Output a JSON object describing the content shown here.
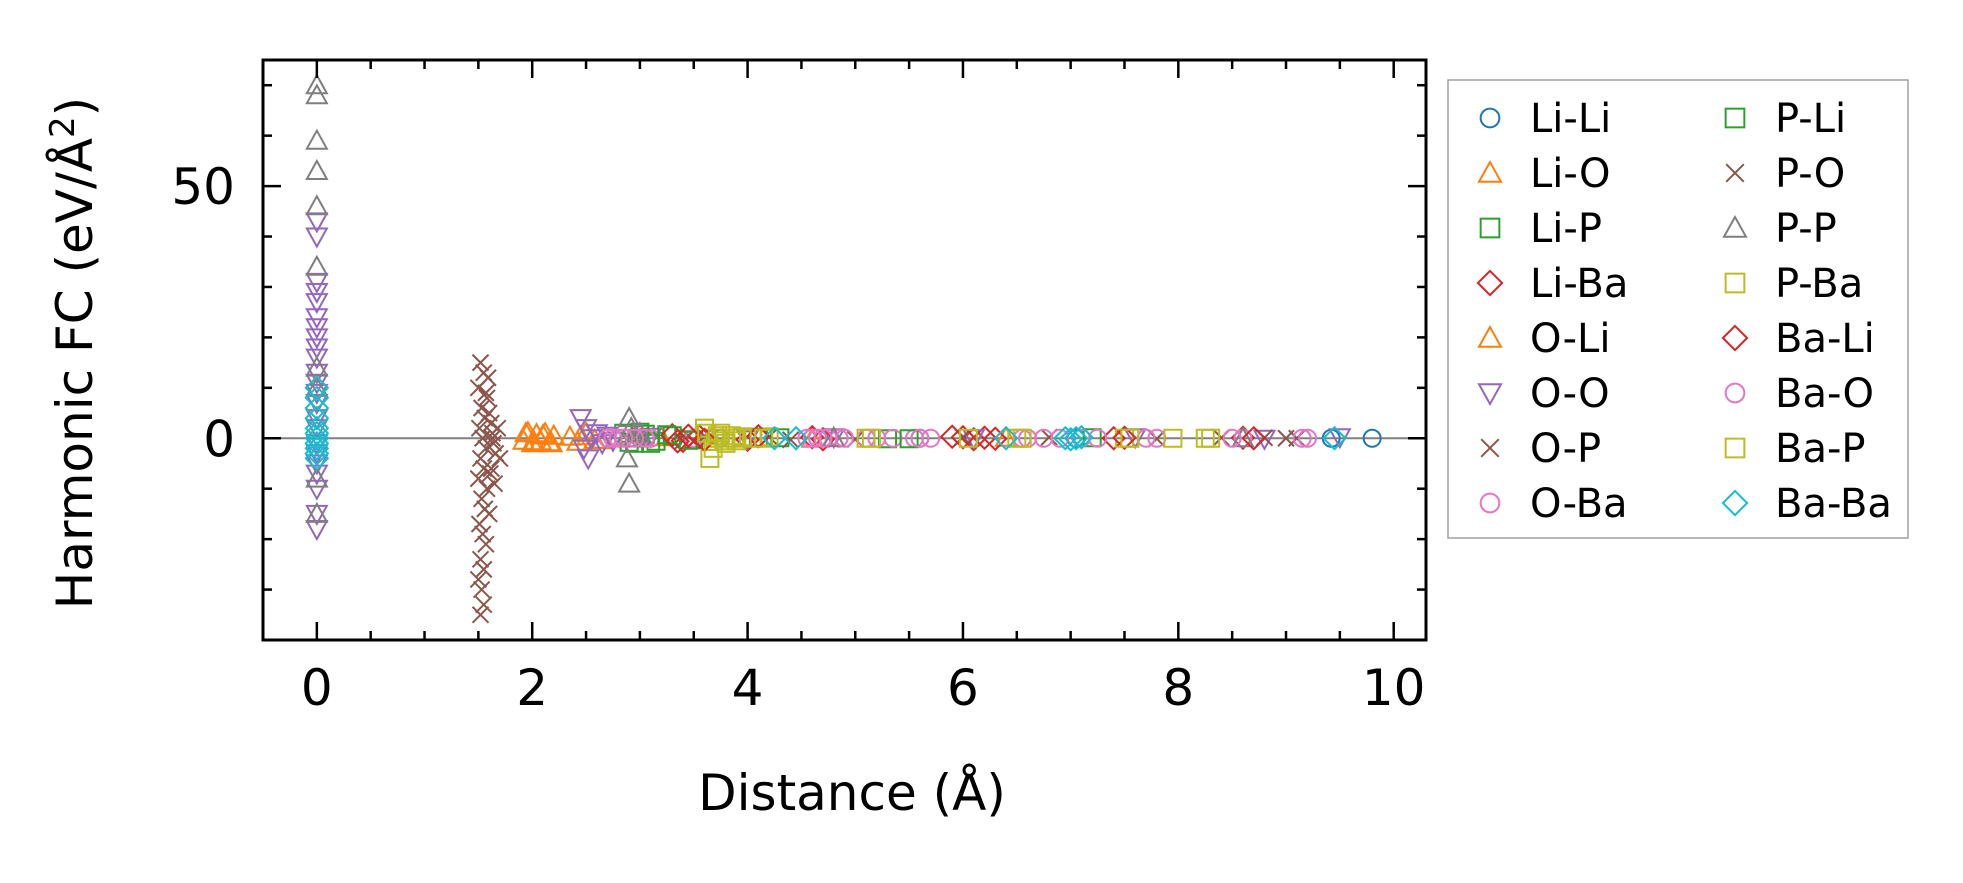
{
  "chart_data": {
    "type": "scatter",
    "title": "",
    "xlabel": "Distance (Å)",
    "ylabel_prefix": "Harmonic FC (eV/Å",
    "ylabel_sup": "2",
    "ylabel_suffix": ")",
    "xlim": [
      -0.5,
      10.3
    ],
    "ylim": [
      -40,
      75
    ],
    "xticks": [
      0,
      2,
      4,
      6,
      8,
      10
    ],
    "xtick_labels": [
      "0",
      "2",
      "4",
      "6",
      "8",
      "10"
    ],
    "xminor": [
      -0.5,
      0.5,
      1,
      1.5,
      2.5,
      3,
      3.5,
      4.5,
      5,
      5.5,
      6.5,
      7,
      7.5,
      8.5,
      9,
      9.5
    ],
    "yticks": [
      0,
      50
    ],
    "ytick_labels": [
      "0",
      "50"
    ],
    "yminor": [
      -30,
      -20,
      -10,
      10,
      20,
      30,
      40,
      60,
      70
    ],
    "zero_line": true,
    "grid": false,
    "legend_position": "outside-right",
    "series": [
      {
        "name": "Li-Li",
        "color": "#1f77b4",
        "marker": "circle",
        "points": [
          [
            9.8,
            0
          ],
          [
            9.42,
            0
          ],
          [
            7.05,
            0
          ],
          [
            5.6,
            0
          ],
          [
            3.75,
            0
          ]
        ]
      },
      {
        "name": "Li-O",
        "color": "#ff7f0e",
        "marker": "triangle-up",
        "points": [
          [
            1.92,
            -0.5
          ],
          [
            1.96,
            1.2
          ],
          [
            2.0,
            -1.0
          ],
          [
            2.04,
            0.8
          ],
          [
            2.08,
            -0.6
          ],
          [
            2.12,
            1.0
          ],
          [
            2.16,
            -0.8
          ],
          [
            2.2,
            0.5
          ],
          [
            2.35,
            0.3
          ],
          [
            2.42,
            -0.7
          ],
          [
            2.5,
            1.1
          ],
          [
            2.65,
            -0.4
          ],
          [
            3.2,
            0.2
          ],
          [
            4.6,
            -0.1
          ],
          [
            6.4,
            0.1
          ]
        ]
      },
      {
        "name": "Li-P",
        "color": "#2ca02c",
        "marker": "square",
        "points": [
          [
            2.85,
            1.0
          ],
          [
            2.95,
            -1.0
          ],
          [
            3.05,
            0.8
          ],
          [
            3.15,
            -0.6
          ],
          [
            3.3,
            0.5
          ],
          [
            3.5,
            -0.3
          ],
          [
            4.1,
            0.2
          ],
          [
            5.3,
            -0.1
          ],
          [
            7.2,
            0.1
          ]
        ]
      },
      {
        "name": "Li-Ba",
        "color": "#d62728",
        "marker": "diamond",
        "points": [
          [
            3.3,
            0.6
          ],
          [
            3.4,
            -0.5
          ],
          [
            3.55,
            0.4
          ],
          [
            4.0,
            -0.3
          ],
          [
            4.6,
            0.2
          ],
          [
            5.9,
            0.3
          ],
          [
            6.1,
            -0.2
          ],
          [
            6.2,
            0.1
          ],
          [
            7.4,
            0
          ],
          [
            8.6,
            0.1
          ]
        ]
      },
      {
        "name": "O-Li",
        "color": "#ff7f0e",
        "marker": "triangle-up",
        "points": [
          [
            1.94,
            1.0
          ],
          [
            2.02,
            -0.8
          ],
          [
            2.1,
            0.6
          ],
          [
            2.18,
            -1.0
          ],
          [
            2.45,
            0.4
          ],
          [
            2.58,
            -0.3
          ]
        ]
      },
      {
        "name": "O-O",
        "color": "#9467bd",
        "marker": "triangle-down",
        "points": [
          [
            0,
            43
          ],
          [
            0,
            40
          ],
          [
            0,
            31
          ],
          [
            0,
            29
          ],
          [
            0,
            27
          ],
          [
            0,
            24
          ],
          [
            0,
            22
          ],
          [
            0,
            20
          ],
          [
            0,
            18
          ],
          [
            0,
            16
          ],
          [
            0,
            13
          ],
          [
            0,
            11
          ],
          [
            0,
            9
          ],
          [
            0,
            7
          ],
          [
            0,
            4
          ],
          [
            0,
            2
          ],
          [
            0,
            -1
          ],
          [
            0,
            -3
          ],
          [
            0,
            -5
          ],
          [
            0,
            -7
          ],
          [
            0,
            -10
          ],
          [
            0,
            -15
          ],
          [
            0,
            -18
          ],
          [
            2.45,
            4
          ],
          [
            2.5,
            2
          ],
          [
            2.55,
            0
          ],
          [
            2.48,
            -2
          ],
          [
            2.52,
            -4
          ],
          [
            2.6,
            1
          ],
          [
            2.65,
            -1
          ],
          [
            2.7,
            0.5
          ],
          [
            2.75,
            -0.5
          ],
          [
            3.1,
            0.3
          ],
          [
            4.0,
            -0.2
          ],
          [
            4.8,
            0.2
          ],
          [
            6.1,
            0
          ],
          [
            7.6,
            0.2
          ],
          [
            8.8,
            -0.1
          ],
          [
            9.5,
            0.2
          ]
        ]
      },
      {
        "name": "O-P",
        "color": "#8c564b",
        "marker": "x",
        "points": [
          [
            1.52,
            15
          ],
          [
            1.55,
            13
          ],
          [
            1.5,
            10
          ],
          [
            1.58,
            8
          ],
          [
            1.53,
            6
          ],
          [
            1.56,
            4
          ],
          [
            1.51,
            2
          ],
          [
            1.54,
            0
          ],
          [
            1.57,
            -2
          ],
          [
            1.52,
            -4
          ],
          [
            1.55,
            -6
          ],
          [
            1.5,
            -8
          ],
          [
            1.58,
            -10
          ],
          [
            1.53,
            -12
          ],
          [
            1.56,
            -14
          ],
          [
            1.51,
            -17
          ],
          [
            1.54,
            -19
          ],
          [
            1.57,
            -21
          ],
          [
            1.52,
            -24
          ],
          [
            1.55,
            -26
          ],
          [
            1.5,
            -28
          ],
          [
            1.53,
            -30
          ],
          [
            1.55,
            -33
          ],
          [
            1.52,
            -35
          ],
          [
            1.6,
            5
          ],
          [
            1.62,
            3
          ],
          [
            1.64,
            -1
          ],
          [
            1.66,
            -3
          ],
          [
            1.62,
            -6
          ],
          [
            1.65,
            -9
          ],
          [
            1.68,
            2
          ],
          [
            1.7,
            -4
          ],
          [
            1.63,
            0
          ],
          [
            3.0,
            0.5
          ],
          [
            3.4,
            -0.5
          ],
          [
            4.2,
            0.3
          ],
          [
            5.0,
            -0.2
          ],
          [
            6.8,
            0.2
          ],
          [
            7.8,
            -0.1
          ],
          [
            8.8,
            0.1
          ],
          [
            9.1,
            0
          ]
        ]
      },
      {
        "name": "O-Ba",
        "color": "#e377c2",
        "marker": "circle",
        "points": [
          [
            2.7,
            0
          ],
          [
            2.8,
            0
          ],
          [
            2.9,
            0
          ],
          [
            3.0,
            0
          ],
          [
            3.1,
            0
          ],
          [
            3.5,
            0
          ],
          [
            4.55,
            0
          ],
          [
            4.65,
            0
          ],
          [
            4.75,
            0
          ],
          [
            4.85,
            0
          ],
          [
            5.1,
            0
          ],
          [
            5.35,
            0
          ],
          [
            5.55,
            0
          ],
          [
            5.7,
            0
          ],
          [
            6.55,
            0
          ],
          [
            6.75,
            0
          ],
          [
            7.25,
            0
          ],
          [
            7.8,
            0
          ],
          [
            8.6,
            0
          ],
          [
            9.15,
            0
          ]
        ]
      },
      {
        "name": "P-Li",
        "color": "#2ca02c",
        "marker": "square",
        "points": [
          [
            2.9,
            -0.8
          ],
          [
            3.0,
            1.2
          ],
          [
            3.1,
            -1.0
          ],
          [
            3.25,
            0.7
          ],
          [
            3.45,
            -0.4
          ],
          [
            4.3,
            0.1
          ],
          [
            5.5,
            -0.1
          ]
        ]
      },
      {
        "name": "P-O",
        "color": "#8c564b",
        "marker": "x",
        "points": [
          [
            1.59,
            12
          ],
          [
            1.61,
            -7
          ],
          [
            1.57,
            9
          ],
          [
            1.6,
            -15
          ],
          [
            1.63,
            1
          ],
          [
            3.6,
            0.4
          ],
          [
            4.4,
            -0.3
          ],
          [
            6.0,
            0.2
          ],
          [
            8.4,
            0.1
          ],
          [
            9.0,
            0
          ]
        ]
      },
      {
        "name": "P-P",
        "color": "#7f7f7f",
        "marker": "triangle-up",
        "points": [
          [
            0,
            70
          ],
          [
            0,
            68
          ],
          [
            0,
            59
          ],
          [
            0,
            53
          ],
          [
            0,
            46
          ],
          [
            0,
            34
          ],
          [
            0,
            14
          ],
          [
            0,
            10
          ],
          [
            0,
            -8
          ],
          [
            0,
            -15
          ],
          [
            2.9,
            4
          ],
          [
            2.92,
            2
          ],
          [
            2.88,
            -4
          ],
          [
            2.9,
            -9
          ],
          [
            2.95,
            0
          ],
          [
            3.0,
            1
          ],
          [
            4.8,
            0.1
          ],
          [
            8.6,
            0
          ]
        ]
      },
      {
        "name": "P-Ba",
        "color": "#bcbd22",
        "marker": "square",
        "points": [
          [
            3.6,
            2
          ],
          [
            3.65,
            -4
          ],
          [
            3.7,
            0
          ],
          [
            3.75,
            1
          ],
          [
            3.8,
            -1
          ],
          [
            3.85,
            0.5
          ],
          [
            3.9,
            -0.5
          ],
          [
            4.05,
            0
          ],
          [
            4.2,
            0.3
          ],
          [
            5.1,
            0
          ],
          [
            6.5,
            0
          ],
          [
            7.5,
            0
          ],
          [
            8.3,
            0
          ]
        ]
      },
      {
        "name": "Ba-Li",
        "color": "#d62728",
        "marker": "diamond",
        "points": [
          [
            3.35,
            -0.6
          ],
          [
            3.45,
            0.5
          ],
          [
            3.6,
            -0.3
          ],
          [
            4.1,
            0.4
          ],
          [
            4.7,
            -0.2
          ],
          [
            6.0,
            0.2
          ],
          [
            6.3,
            -0.1
          ],
          [
            7.5,
            0.1
          ],
          [
            8.7,
            0
          ]
        ]
      },
      {
        "name": "Ba-O",
        "color": "#e377c2",
        "marker": "circle",
        "points": [
          [
            2.75,
            0
          ],
          [
            2.85,
            0
          ],
          [
            2.95,
            0
          ],
          [
            3.05,
            0
          ],
          [
            4.6,
            0
          ],
          [
            4.7,
            0
          ],
          [
            4.9,
            0
          ],
          [
            5.2,
            0
          ],
          [
            5.6,
            0
          ],
          [
            6.6,
            0
          ],
          [
            6.9,
            0
          ],
          [
            7.1,
            0
          ],
          [
            7.7,
            0
          ],
          [
            8.5,
            0
          ],
          [
            9.2,
            0
          ]
        ]
      },
      {
        "name": "Ba-P",
        "color": "#bcbd22",
        "marker": "square",
        "points": [
          [
            3.62,
            1
          ],
          [
            3.68,
            -2
          ],
          [
            3.72,
            0.5
          ],
          [
            3.78,
            -0.5
          ],
          [
            3.88,
            0
          ],
          [
            3.95,
            0.3
          ],
          [
            4.15,
            0
          ],
          [
            5.15,
            0
          ],
          [
            6.05,
            0
          ],
          [
            6.55,
            0
          ],
          [
            7.55,
            0
          ],
          [
            7.95,
            0
          ],
          [
            8.25,
            0
          ]
        ]
      },
      {
        "name": "Ba-Ba",
        "color": "#17becf",
        "marker": "diamond",
        "points": [
          [
            0,
            10
          ],
          [
            0,
            8
          ],
          [
            0,
            6
          ],
          [
            0,
            4
          ],
          [
            0,
            2
          ],
          [
            0,
            1
          ],
          [
            0,
            0
          ],
          [
            0,
            -1
          ],
          [
            0,
            -2
          ],
          [
            0,
            -3
          ],
          [
            0,
            -4
          ],
          [
            4.25,
            0
          ],
          [
            4.45,
            0
          ],
          [
            6.4,
            0
          ],
          [
            6.95,
            0
          ],
          [
            7.0,
            -0.2
          ],
          [
            7.05,
            0
          ],
          [
            7.1,
            0.2
          ],
          [
            9.45,
            0
          ]
        ]
      }
    ]
  }
}
